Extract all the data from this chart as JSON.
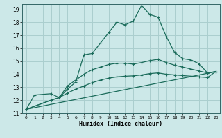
{
  "xlabel": "Humidex (Indice chaleur)",
  "bg_color": "#cce8e8",
  "grid_color": "#aacece",
  "line_color": "#1a6b5a",
  "xlim": [
    -0.5,
    23.5
  ],
  "ylim": [
    11,
    19.4
  ],
  "xticks": [
    0,
    1,
    2,
    3,
    4,
    5,
    6,
    7,
    8,
    9,
    10,
    11,
    12,
    13,
    14,
    15,
    16,
    17,
    18,
    19,
    20,
    21,
    22,
    23
  ],
  "yticks": [
    11,
    12,
    13,
    14,
    15,
    16,
    17,
    18,
    19
  ],
  "curve1_x": [
    0,
    1,
    3,
    4,
    5,
    6,
    7,
    8,
    9,
    10,
    11,
    12,
    13,
    14,
    15,
    16,
    17,
    18,
    19,
    20,
    21,
    22,
    23
  ],
  "curve1_y": [
    11.3,
    12.4,
    12.5,
    12.2,
    12.85,
    13.4,
    15.5,
    15.6,
    16.4,
    17.2,
    18.0,
    17.8,
    18.1,
    19.3,
    18.6,
    18.4,
    16.9,
    15.7,
    15.2,
    15.1,
    14.8,
    14.1,
    14.2
  ],
  "curve2_x": [
    0,
    3,
    4,
    5,
    6,
    7,
    8,
    9,
    10,
    11,
    12,
    13,
    14,
    15,
    16,
    17,
    18,
    19,
    20,
    21,
    22,
    23
  ],
  "curve2_y": [
    11.3,
    12.0,
    12.2,
    13.1,
    13.55,
    14.0,
    14.35,
    14.55,
    14.75,
    14.85,
    14.85,
    14.78,
    14.9,
    15.05,
    15.15,
    14.9,
    14.7,
    14.55,
    14.4,
    14.25,
    14.1,
    14.2
  ],
  "curve3_x": [
    0,
    3,
    4,
    5,
    6,
    7,
    8,
    9,
    10,
    11,
    12,
    13,
    14,
    15,
    16,
    17,
    18,
    19,
    20,
    21,
    22,
    23
  ],
  "curve3_y": [
    11.3,
    12.0,
    12.2,
    12.55,
    12.85,
    13.1,
    13.35,
    13.55,
    13.7,
    13.8,
    13.85,
    13.88,
    13.95,
    14.05,
    14.1,
    14.0,
    13.95,
    13.9,
    13.85,
    13.8,
    13.75,
    14.2
  ],
  "curve4_x": [
    0,
    23
  ],
  "curve4_y": [
    11.3,
    14.2
  ]
}
